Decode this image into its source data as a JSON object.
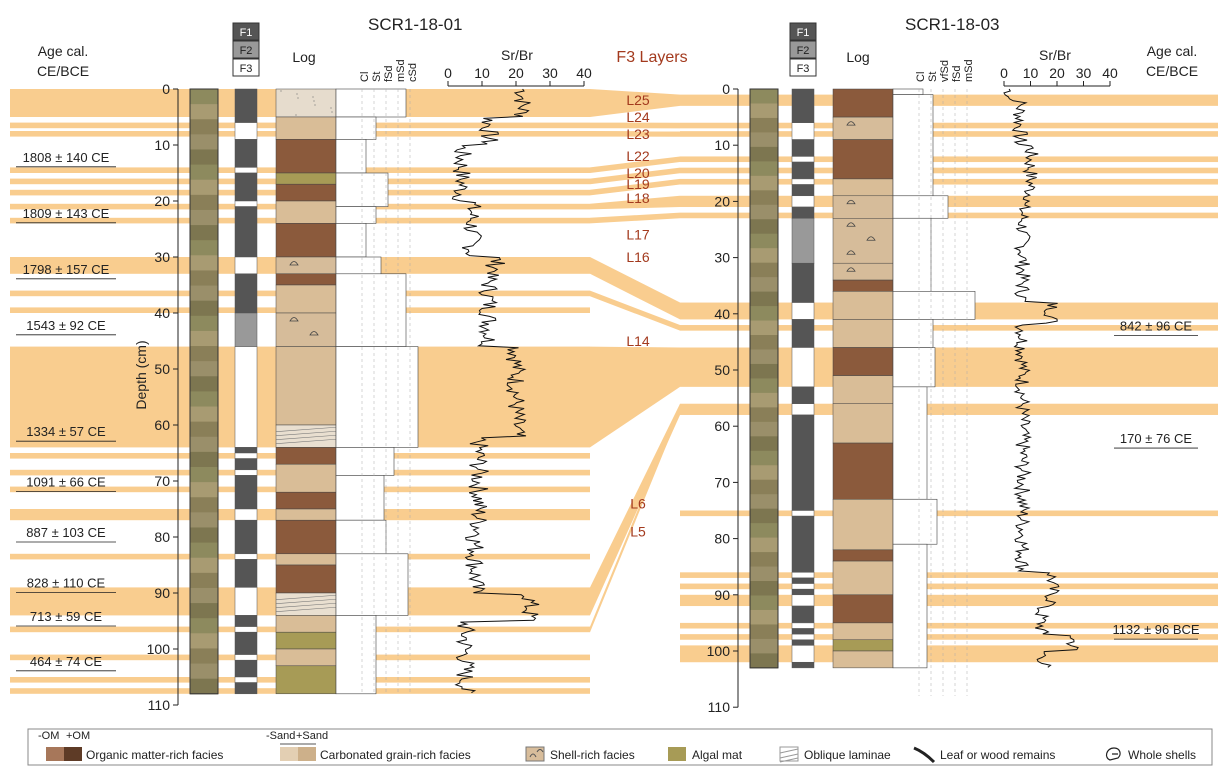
{
  "core1": {
    "title": "SCR1-18-01",
    "age_header": [
      "Age cal.",
      "CE/BCE"
    ],
    "log_label": "Log",
    "grain_labels": [
      "Cl",
      "St",
      "fSd",
      "mSd",
      "cSd"
    ],
    "srbr_label": "Sr/Br",
    "srbr_ticks": [
      "0",
      "10",
      "20",
      "30",
      "40"
    ],
    "depth_ticks": [
      "0",
      "10",
      "20",
      "30",
      "40",
      "50",
      "60",
      "70",
      "80",
      "90",
      "100",
      "110"
    ],
    "depth_label": "Depth (cm)",
    "dates": [
      {
        "text": "1808 ± 140 CE",
        "depth": 13
      },
      {
        "text": "1809 ± 143 CE",
        "depth": 23
      },
      {
        "text": "1798 ± 157 CE",
        "depth": 33
      },
      {
        "text": "1543 ± 92 CE",
        "depth": 43
      },
      {
        "text": "1334 ± 57 CE",
        "depth": 62
      },
      {
        "text": "1091 ± 66 CE",
        "depth": 71
      },
      {
        "text": "887 ± 103 CE",
        "depth": 80
      },
      {
        "text": "828 ± 110 CE",
        "depth": 89
      },
      {
        "text": "713 ± 59 CE",
        "depth": 95
      },
      {
        "text": "464 ± 74 CE",
        "depth": 103
      }
    ]
  },
  "core2": {
    "title": "SCR1-18-03",
    "age_header": [
      "Age cal.",
      "CE/BCE"
    ],
    "log_label": "Log",
    "grain_labels": [
      "Cl",
      "St",
      "vfSd",
      "fSd",
      "mSd"
    ],
    "srbr_label": "Sr/Br",
    "srbr_ticks": [
      "0",
      "10",
      "20",
      "30",
      "40"
    ],
    "depth_ticks": [
      "0",
      "10",
      "20",
      "30",
      "40",
      "50",
      "60",
      "70",
      "80",
      "90",
      "100",
      "110"
    ],
    "dates": [
      {
        "text": "842 ± 96 CE",
        "depth": 43
      },
      {
        "text": "170 ± 76 CE",
        "depth": 63
      },
      {
        "text": "1132 ± 96 BCE",
        "depth": 97
      }
    ]
  },
  "facies_labels": [
    "F1",
    "F2",
    "F3"
  ],
  "f3_title": "F3 Layers",
  "layer_labels": [
    {
      "text": "L25",
      "depth": 2
    },
    {
      "text": "L24",
      "depth": 5
    },
    {
      "text": "L23",
      "depth": 8
    },
    {
      "text": "L22",
      "depth": 12
    },
    {
      "text": "L20",
      "depth": 15
    },
    {
      "text": "L19",
      "depth": 17
    },
    {
      "text": "L18",
      "depth": 19.5
    },
    {
      "text": "L17",
      "depth": 26
    },
    {
      "text": "L16",
      "depth": 30
    },
    {
      "text": "L14",
      "depth": 45
    },
    {
      "text": "L6",
      "depth": 74
    },
    {
      "text": "L5",
      "depth": 79
    }
  ],
  "legend": {
    "om_minus": "-OM",
    "om_plus": "+OM",
    "organic": "Organic matter-rich facies",
    "sand_minus": "-Sand",
    "sand_plus": "+Sand",
    "carbonated": "Carbonated grain-rich facies",
    "shell": "Shell-rich facies",
    "algal": "Algal mat",
    "oblique": "Oblique laminae",
    "leaf": "Leaf or wood remains",
    "whole": "Whole shells"
  },
  "colors": {
    "f3_band": "#f9cd8f",
    "organic": "#8b5a3c",
    "carbonated": "#d9bd97",
    "algal": "#a79b56",
    "f1": "#555555",
    "f2": "#999999",
    "f3": "#ffffff",
    "layer_text": "#a33a1e"
  }
}
